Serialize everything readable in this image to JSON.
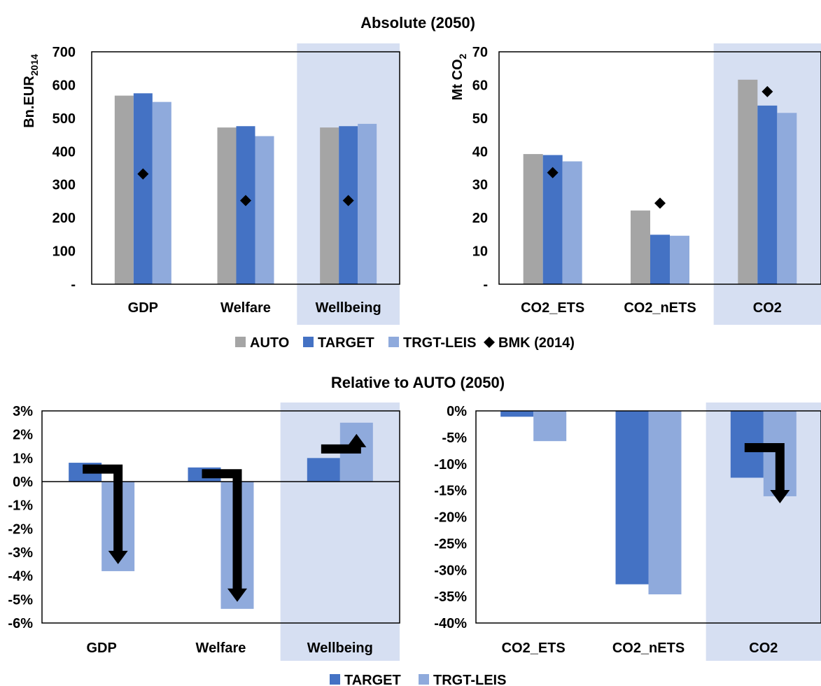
{
  "figure": {
    "top_title": "Absolute (2050)",
    "bottom_title": "Relative to AUTO (2050)"
  },
  "colors": {
    "AUTO": "#a5a5a5",
    "TARGET": "#4472c4",
    "TRGT-LEIS": "#8faadc",
    "BMK": "#000000",
    "highlight": "#d6dff2"
  },
  "legends": {
    "top": [
      {
        "key": "AUTO",
        "label": "AUTO",
        "shape": "square"
      },
      {
        "key": "TARGET",
        "label": "TARGET",
        "shape": "square"
      },
      {
        "key": "TRGT-LEIS",
        "label": "TRGT-LEIS",
        "shape": "square"
      },
      {
        "key": "BMK",
        "label": "BMK (2014)",
        "shape": "diamond"
      }
    ],
    "bottom": [
      {
        "key": "TARGET",
        "label": "TARGET",
        "shape": "square"
      },
      {
        "key": "TRGT-LEIS",
        "label": "TRGT-LEIS",
        "shape": "square"
      }
    ]
  },
  "chart_data": [
    {
      "id": "abs_econ",
      "type": "bar",
      "ylabel": "Bn.EUR",
      "ylabel_sub": "2014",
      "ylim": [
        0,
        700
      ],
      "yticks": [
        0,
        100,
        200,
        300,
        400,
        500,
        600,
        700
      ],
      "ytick_labels": [
        "-",
        "100",
        "200",
        "300",
        "400",
        "500",
        "600",
        "700"
      ],
      "categories": [
        "GDP",
        "Welfare",
        "Wellbeing"
      ],
      "highlight_category": "Wellbeing",
      "series": [
        {
          "name": "AUTO",
          "values": [
            568,
            472,
            472
          ]
        },
        {
          "name": "TARGET",
          "values": [
            575,
            476,
            476
          ]
        },
        {
          "name": "TRGT-LEIS",
          "values": [
            549,
            446,
            483
          ]
        }
      ],
      "markers": {
        "name": "BMK (2014)",
        "values": [
          332,
          252,
          252
        ]
      }
    },
    {
      "id": "abs_co2",
      "type": "bar",
      "ylabel": "Mt CO",
      "ylabel_sub": "2",
      "ylim": [
        0,
        70
      ],
      "yticks": [
        0,
        10,
        20,
        30,
        40,
        50,
        60,
        70
      ],
      "ytick_labels": [
        "-",
        "10",
        "20",
        "30",
        "40",
        "50",
        "60",
        "70"
      ],
      "categories": [
        "CO2_ETS",
        "CO2_nETS",
        "CO2"
      ],
      "highlight_category": "CO2",
      "series": [
        {
          "name": "AUTO",
          "values": [
            39.2,
            22.2,
            61.6
          ]
        },
        {
          "name": "TARGET",
          "values": [
            38.9,
            14.9,
            53.8
          ]
        },
        {
          "name": "TRGT-LEIS",
          "values": [
            37.0,
            14.6,
            51.6
          ]
        }
      ],
      "markers": {
        "name": "BMK (2014)",
        "values": [
          33.6,
          24.4,
          58.0
        ]
      }
    },
    {
      "id": "rel_econ",
      "type": "bar",
      "ylim": [
        -6,
        3
      ],
      "yticks": [
        -6,
        -5,
        -4,
        -3,
        -2,
        -1,
        0,
        1,
        2,
        3
      ],
      "ytick_labels": [
        "-6%",
        "-5%",
        "-4%",
        "-3%",
        "-2%",
        "-1%",
        "0%",
        "1%",
        "2%",
        "3%"
      ],
      "categories": [
        "GDP",
        "Welfare",
        "Wellbeing"
      ],
      "highlight_category": "Wellbeing",
      "series": [
        {
          "name": "TARGET",
          "values": [
            0.8,
            0.6,
            1.0
          ]
        },
        {
          "name": "TRGT-LEIS",
          "values": [
            -3.8,
            -5.4,
            2.5
          ]
        }
      ]
    },
    {
      "id": "rel_co2",
      "type": "bar",
      "ylim": [
        -40,
        0
      ],
      "yticks": [
        -40,
        -35,
        -30,
        -25,
        -20,
        -15,
        -10,
        -5,
        0
      ],
      "ytick_labels": [
        "-40%",
        "-35%",
        "-30%",
        "-25%",
        "-20%",
        "-15%",
        "-10%",
        "-5%",
        "0%"
      ],
      "categories": [
        "CO2_ETS",
        "CO2_nETS",
        "CO2"
      ],
      "highlight_category": "CO2",
      "series": [
        {
          "name": "TARGET",
          "values": [
            -1.1,
            -32.7,
            -12.6
          ]
        },
        {
          "name": "TRGT-LEIS",
          "values": [
            -5.7,
            -34.6,
            -16.1
          ]
        }
      ]
    }
  ]
}
